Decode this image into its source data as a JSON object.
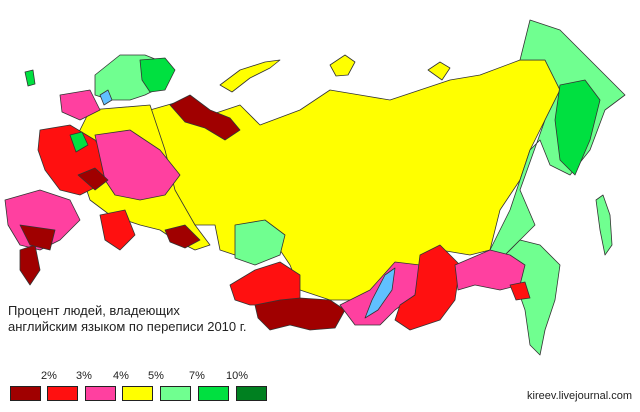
{
  "title_line1": "Процент людей, владеющих",
  "title_line2": "английским языком по переписи 2010 г.",
  "legend": {
    "thresholds": [
      "2%",
      "3%",
      "4%",
      "5%",
      "7%",
      "10%"
    ],
    "colors": [
      "#a00000",
      "#ff1010",
      "#ff40a0",
      "#ffff00",
      "#70ff90",
      "#00e040",
      "#008020"
    ]
  },
  "water_color": "#60c0ff",
  "credit": "kireev.livejournal.com"
}
